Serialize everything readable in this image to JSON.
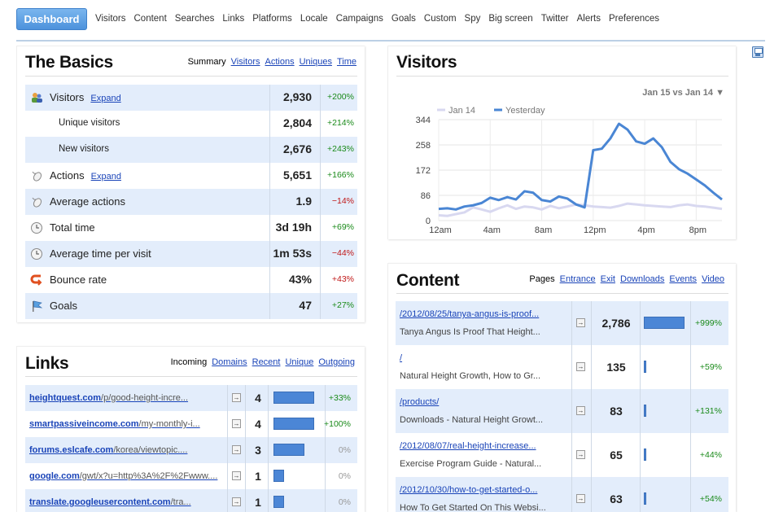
{
  "nav": {
    "active": "Dashboard",
    "items": [
      "Visitors",
      "Content",
      "Searches",
      "Links",
      "Platforms",
      "Locale",
      "Campaigns",
      "Goals",
      "Custom",
      "Spy",
      "Big screen",
      "Twitter",
      "Alerts",
      "Preferences"
    ]
  },
  "basics": {
    "title": "The Basics",
    "tabs": [
      "Summary",
      "Visitors",
      "Actions",
      "Uniques",
      "Time"
    ],
    "active_tab": "Summary",
    "rows": [
      {
        "label": "Visitors",
        "expand": "Expand",
        "value": "2,930",
        "change": "+200%",
        "dir": "pos",
        "icon": "visitors-icon",
        "sub": false
      },
      {
        "label": "Unique visitors",
        "expand": "",
        "value": "2,804",
        "change": "+214%",
        "dir": "pos",
        "icon": "",
        "sub": true
      },
      {
        "label": "New visitors",
        "expand": "",
        "value": "2,676",
        "change": "+243%",
        "dir": "pos",
        "icon": "",
        "sub": true
      },
      {
        "label": "Actions",
        "expand": "Expand",
        "value": "5,651",
        "change": "+166%",
        "dir": "pos",
        "icon": "mouse-icon",
        "sub": false
      },
      {
        "label": "Average actions",
        "expand": "",
        "value": "1.9",
        "change": "−14%",
        "dir": "neg",
        "icon": "mouse-icon",
        "sub": false
      },
      {
        "label": "Total time",
        "expand": "",
        "value": "3d 19h",
        "change": "+69%",
        "dir": "pos",
        "icon": "clock-icon",
        "sub": false
      },
      {
        "label": "Average time per visit",
        "expand": "",
        "value": "1m 53s",
        "change": "−44%",
        "dir": "neg",
        "icon": "clock-icon",
        "sub": false
      },
      {
        "label": "Bounce rate",
        "expand": "",
        "value": "43%",
        "change": "+43%",
        "dir": "neg",
        "icon": "bounce-icon",
        "sub": false
      },
      {
        "label": "Goals",
        "expand": "",
        "value": "47",
        "change": "+27%",
        "dir": "pos",
        "icon": "flag-icon",
        "sub": false
      }
    ]
  },
  "visitors": {
    "title": "Visitors",
    "compare": "Jan 15 vs Jan 14 ▼"
  },
  "chart_data": {
    "type": "line",
    "title": "Visitors",
    "x_labels": [
      "12am",
      "4am",
      "8am",
      "12pm",
      "4pm",
      "8pm"
    ],
    "y_ticks": [
      0,
      86,
      172,
      258,
      344
    ],
    "ylim": [
      0,
      344
    ],
    "grid": true,
    "legend": "top-left",
    "series": [
      {
        "name": "Jan 14",
        "color": "#d8d8f0",
        "values": [
          18,
          16,
          22,
          28,
          45,
          38,
          30,
          42,
          52,
          40,
          48,
          45,
          38,
          50,
          42,
          48,
          55,
          52,
          48,
          46,
          44,
          50,
          58,
          55,
          52,
          50,
          48,
          46,
          52,
          55,
          50,
          48,
          44,
          40
        ]
      },
      {
        "name": "Yesterday",
        "color": "#4a86d4",
        "values": [
          40,
          42,
          38,
          48,
          52,
          60,
          78,
          70,
          80,
          72,
          100,
          95,
          70,
          65,
          82,
          75,
          55,
          45,
          240,
          245,
          280,
          330,
          310,
          270,
          262,
          280,
          250,
          200,
          175,
          160,
          140,
          120,
          95,
          72
        ]
      }
    ]
  },
  "links": {
    "title": "Links",
    "tabs": [
      "Incoming",
      "Domains",
      "Recent",
      "Unique",
      "Outgoing"
    ],
    "active_tab": "Incoming",
    "rows": [
      {
        "domain": "heightquest.com",
        "path": "/p/good-height-incre...",
        "count": "4",
        "bar": 1.0,
        "change": "+33%",
        "dir": "pos"
      },
      {
        "domain": "smartpassiveincome.com",
        "path": "/my-monthly-i...",
        "count": "4",
        "bar": 1.0,
        "change": "+100%",
        "dir": "pos"
      },
      {
        "domain": "forums.eslcafe.com",
        "path": "/korea/viewtopic....",
        "count": "3",
        "bar": 0.75,
        "change": "0%",
        "dir": "zero"
      },
      {
        "domain": "google.com",
        "path": "/gwt/x?u=http%3A%2F%2Fwww....",
        "count": "1",
        "bar": 0.25,
        "change": "0%",
        "dir": "zero"
      },
      {
        "domain": "translate.googleusercontent.com",
        "path": "/tra...",
        "count": "1",
        "bar": 0.25,
        "change": "0%",
        "dir": "zero"
      }
    ]
  },
  "content": {
    "title": "Content",
    "tabs": [
      "Pages",
      "Entrance",
      "Exit",
      "Downloads",
      "Events",
      "Video"
    ],
    "active_tab": "Pages",
    "rows": [
      {
        "url": "/2012/08/25/tanya-angus-is-proof...",
        "title": "Tanya Angus Is Proof That Height...",
        "count": "2,786",
        "bar": 1.0,
        "change": "+999%",
        "dir": "pos"
      },
      {
        "url": "/",
        "title": "Natural Height Growth, How to Gr...",
        "count": "135",
        "bar": 0.048,
        "change": "+59%",
        "dir": "pos"
      },
      {
        "url": "/products/",
        "title": "Downloads - Natural Height Growt...",
        "count": "83",
        "bar": 0.03,
        "change": "+131%",
        "dir": "pos"
      },
      {
        "url": "/2012/08/07/real-height-increase...",
        "title": "Exercise Program Guide - Natural...",
        "count": "65",
        "bar": 0.023,
        "change": "+44%",
        "dir": "pos"
      },
      {
        "url": "/2012/10/30/how-to-get-started-o...",
        "title": "How To Get Started On This Websi...",
        "count": "63",
        "bar": 0.023,
        "change": "+54%",
        "dir": "pos"
      }
    ]
  }
}
